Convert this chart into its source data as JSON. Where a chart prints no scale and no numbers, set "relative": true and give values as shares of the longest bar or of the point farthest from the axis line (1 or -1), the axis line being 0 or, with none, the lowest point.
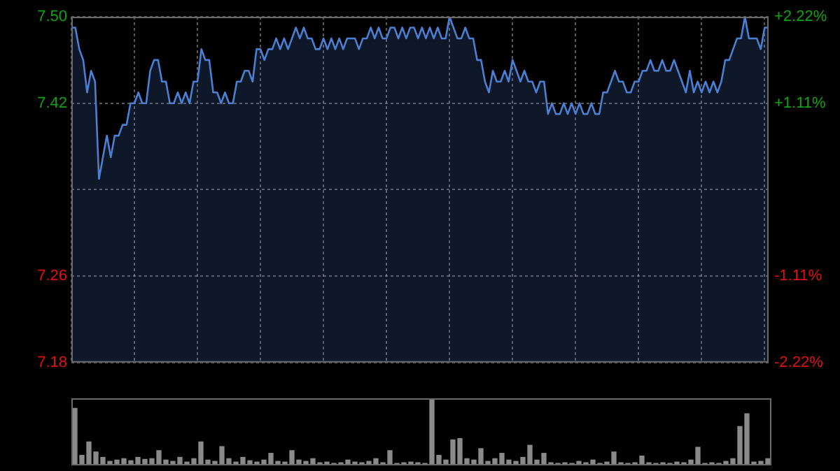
{
  "chart_data": [
    {
      "type": "area",
      "categories": [
        null,
        null,
        null,
        null,
        null,
        null,
        null,
        null,
        null,
        null,
        null,
        null,
        null,
        null,
        null,
        null,
        null,
        null,
        null,
        null,
        null,
        null,
        null,
        null,
        null,
        null,
        null,
        null,
        null,
        null,
        null,
        null,
        null,
        null,
        null,
        null,
        null,
        null,
        null,
        null,
        null,
        null,
        null,
        null,
        null,
        null,
        null,
        null,
        null,
        null,
        null,
        null,
        null,
        null,
        null,
        null,
        null,
        null,
        null,
        null,
        null,
        null,
        null,
        null,
        null,
        null,
        null,
        null,
        null,
        null,
        null,
        null,
        null,
        null,
        null,
        null,
        null,
        null,
        null,
        null,
        null,
        null,
        null,
        null,
        null,
        null,
        null,
        null,
        null,
        null,
        null,
        null,
        null,
        null,
        null,
        null,
        null,
        null,
        null,
        null,
        null,
        null,
        null,
        null,
        null,
        null,
        null,
        null,
        null,
        null,
        null,
        null,
        null,
        null,
        null,
        null,
        null,
        null,
        null,
        null,
        null,
        null,
        null,
        null,
        null,
        null,
        null,
        null,
        null,
        null,
        null,
        null,
        null,
        null,
        null,
        null,
        null,
        null,
        null,
        null,
        null,
        null,
        null,
        null,
        null,
        null,
        null,
        null,
        null,
        null,
        null,
        null,
        null,
        null,
        null,
        null,
        null,
        null,
        null,
        null,
        null,
        null,
        null,
        null,
        null,
        null,
        null,
        null,
        null,
        null,
        null,
        null,
        null,
        null,
        null,
        null,
        null,
        null
      ],
      "series": [
        {
          "color": "#4a7fd4",
          "values": [
            7.49,
            7.49,
            7.47,
            7.46,
            7.43,
            7.45,
            7.44,
            7.35,
            7.37,
            7.39,
            7.37,
            7.39,
            7.39,
            7.4,
            7.4,
            7.42,
            7.42,
            7.43,
            7.42,
            7.42,
            7.45,
            7.46,
            7.46,
            7.44,
            7.44,
            7.42,
            7.42,
            7.43,
            7.42,
            7.43,
            7.42,
            7.44,
            7.44,
            7.47,
            7.46,
            7.46,
            7.43,
            7.43,
            7.42,
            7.43,
            7.42,
            7.42,
            7.44,
            7.44,
            7.45,
            7.45,
            7.44,
            7.47,
            7.47,
            7.46,
            7.47,
            7.47,
            7.48,
            7.47,
            7.48,
            7.47,
            7.48,
            7.49,
            7.48,
            7.49,
            7.48,
            7.48,
            7.47,
            7.47,
            7.48,
            7.47,
            7.48,
            7.47,
            7.48,
            7.47,
            7.48,
            7.48,
            7.48,
            7.47,
            7.48,
            7.48,
            7.49,
            7.48,
            7.49,
            7.48,
            7.48,
            7.49,
            7.49,
            7.48,
            7.49,
            7.48,
            7.49,
            7.49,
            7.48,
            7.49,
            7.48,
            7.49,
            7.48,
            7.49,
            7.48,
            7.48,
            7.5,
            7.49,
            7.48,
            7.48,
            7.49,
            7.48,
            7.48,
            7.46,
            7.46,
            7.44,
            7.43,
            7.45,
            7.44,
            7.44,
            7.45,
            7.44,
            7.46,
            7.45,
            7.44,
            7.45,
            7.44,
            7.44,
            7.43,
            7.44,
            7.44,
            7.41,
            7.42,
            7.41,
            7.41,
            7.42,
            7.41,
            7.42,
            7.41,
            7.42,
            7.41,
            7.41,
            7.42,
            7.41,
            7.41,
            7.43,
            7.43,
            7.44,
            7.45,
            7.44,
            7.44,
            7.43,
            7.43,
            7.44,
            7.44,
            7.45,
            7.45,
            7.46,
            7.45,
            7.45,
            7.46,
            7.45,
            7.45,
            7.46,
            7.45,
            7.44,
            7.43,
            7.45,
            7.43,
            7.44,
            7.43,
            7.44,
            7.43,
            7.44,
            7.43,
            7.44,
            7.46,
            7.46,
            7.47,
            7.48,
            7.48,
            7.5,
            7.48,
            7.48,
            7.48,
            7.47,
            7.49,
            7.49
          ]
        }
      ],
      "ylim": [
        7.18,
        7.5
      ],
      "yticks": [
        {
          "value": 7.5,
          "label": "7.50"
        },
        7.42,
        {
          "value": 7.34,
          "label": null
        },
        7.26,
        7.18
      ],
      "y2lim": [
        -2.22,
        2.22
      ],
      "y2ticks": [
        {
          "value": 2.22,
          "label": "+2.22%"
        },
        {
          "value": 1.11,
          "label": "+1.11%"
        },
        {
          "value": -1.11,
          "label": "-1.11%"
        },
        {
          "value": -2.22,
          "label": "-2.22%"
        }
      ],
      "tick_labels": "y",
      "grid": true
    },
    {
      "type": "bar",
      "relative": true,
      "categories": [
        null,
        null,
        null,
        null,
        null,
        null,
        null,
        null,
        null,
        null,
        null,
        null,
        null,
        null,
        null,
        null,
        null,
        null,
        null,
        null,
        null,
        null,
        null,
        null,
        null,
        null,
        null,
        null,
        null,
        null,
        null,
        null,
        null,
        null,
        null,
        null,
        null,
        null,
        null,
        null,
        null,
        null,
        null,
        null,
        null,
        null,
        null,
        null,
        null,
        null,
        null,
        null,
        null,
        null,
        null,
        null,
        null,
        null,
        null,
        null,
        null,
        null,
        null,
        null,
        null,
        null,
        null,
        null,
        null,
        null,
        null,
        null,
        null,
        null,
        null,
        null,
        null,
        null,
        null,
        null,
        null,
        null,
        null,
        null,
        null,
        null,
        null,
        null,
        null,
        null,
        null,
        null,
        null,
        null,
        null,
        null,
        null,
        null,
        null,
        null
      ],
      "series": [
        {
          "color": "#8a8a8a",
          "values": [
            0.85,
            0.15,
            0.35,
            0.2,
            0.12,
            0.06,
            0.08,
            0.1,
            0.07,
            0.12,
            0.09,
            0.1,
            0.22,
            0.08,
            0.06,
            0.12,
            0.05,
            0.1,
            0.35,
            0.08,
            0.06,
            0.28,
            0.1,
            0.05,
            0.12,
            0.07,
            0.05,
            0.08,
            0.18,
            0.06,
            0.05,
            0.22,
            0.08,
            0.06,
            0.1,
            0.04,
            0.05,
            0.03,
            0.04,
            0.08,
            0.05,
            0.04,
            0.06,
            0.1,
            0.04,
            0.22,
            0.03,
            0.04,
            0.05,
            0.04,
            0.03,
            1.0,
            0.15,
            0.08,
            0.38,
            0.4,
            0.1,
            0.08,
            0.25,
            0.06,
            0.1,
            0.18,
            0.08,
            0.06,
            0.12,
            0.3,
            0.08,
            0.18,
            0.04,
            0.03,
            0.04,
            0.03,
            0.06,
            0.04,
            0.08,
            0.03,
            0.05,
            0.2,
            0.04,
            0.03,
            0.04,
            0.14,
            0.04,
            0.03,
            0.04,
            0.03,
            0.05,
            0.04,
            0.08,
            0.27,
            0.03,
            0.04,
            0.03,
            0.06,
            0.1,
            0.58,
            0.77,
            0.05,
            0.06,
            0.1
          ]
        }
      ]
    }
  ]
}
